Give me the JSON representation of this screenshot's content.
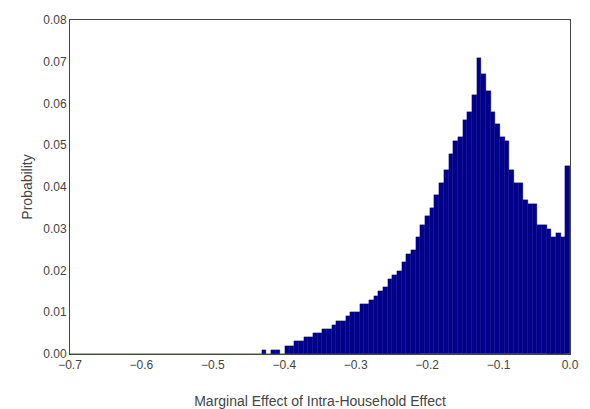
{
  "chart_data": {
    "type": "bar",
    "values": [
      0.0,
      0.0,
      0.0,
      0.0,
      0.0,
      0.0,
      0.0,
      0.0,
      0.0,
      0.0,
      0.0,
      0.0,
      0.0,
      0.0,
      0.0,
      0.0,
      0.0,
      0.0,
      0.0,
      0.0,
      0.0,
      0.0,
      0.0,
      0.0,
      0.0,
      0.0,
      0.0,
      0.0,
      0.0,
      0.0,
      0.0,
      0.0,
      0.0,
      0.0,
      0.0,
      0.0,
      0.0,
      0.0,
      0.0,
      0.0,
      0.0,
      0.001,
      0.0,
      0.001,
      0.001,
      0.0,
      0.002,
      0.002,
      0.003,
      0.003,
      0.004,
      0.004,
      0.005,
      0.005,
      0.006,
      0.006,
      0.007,
      0.008,
      0.008,
      0.009,
      0.01,
      0.01,
      0.012,
      0.012,
      0.013,
      0.014,
      0.015,
      0.016,
      0.018,
      0.019,
      0.02,
      0.022,
      0.024,
      0.025,
      0.028,
      0.031,
      0.033,
      0.035,
      0.038,
      0.041,
      0.044,
      0.048,
      0.051,
      0.052,
      0.056,
      0.058,
      0.062,
      0.071,
      0.067,
      0.063,
      0.058,
      0.055,
      0.052,
      0.051,
      0.044,
      0.041,
      0.041,
      0.037,
      0.036,
      0.036,
      0.031,
      0.031,
      0.03,
      0.028,
      0.029,
      0.028,
      0.045
    ],
    "color": "#00008B",
    "xlabel": "Marginal Effect of Intra-Household Effect",
    "ylabel": "Probability",
    "xlim": [
      -0.7,
      0.0
    ],
    "ylim": [
      0.0,
      0.08
    ],
    "xticks": [
      {
        "value": -0.7,
        "label": "−0.7"
      },
      {
        "value": -0.6,
        "label": "−0.6"
      },
      {
        "value": -0.5,
        "label": "−0.5"
      },
      {
        "value": -0.4,
        "label": "−0.4"
      },
      {
        "value": -0.3,
        "label": "−0.3"
      },
      {
        "value": -0.2,
        "label": "−0.2"
      },
      {
        "value": -0.1,
        "label": "−0.1"
      },
      {
        "value": 0.0,
        "label": "0.0"
      }
    ],
    "yticks": [
      {
        "value": 0.0,
        "label": "0.00"
      },
      {
        "value": 0.01,
        "label": "0.01"
      },
      {
        "value": 0.02,
        "label": "0.02"
      },
      {
        "value": 0.03,
        "label": "0.03"
      },
      {
        "value": 0.04,
        "label": "0.04"
      },
      {
        "value": 0.05,
        "label": "0.05"
      },
      {
        "value": 0.06,
        "label": "0.06"
      },
      {
        "value": 0.07,
        "label": "0.07"
      },
      {
        "value": 0.08,
        "label": "0.08"
      }
    ],
    "grid": false
  }
}
